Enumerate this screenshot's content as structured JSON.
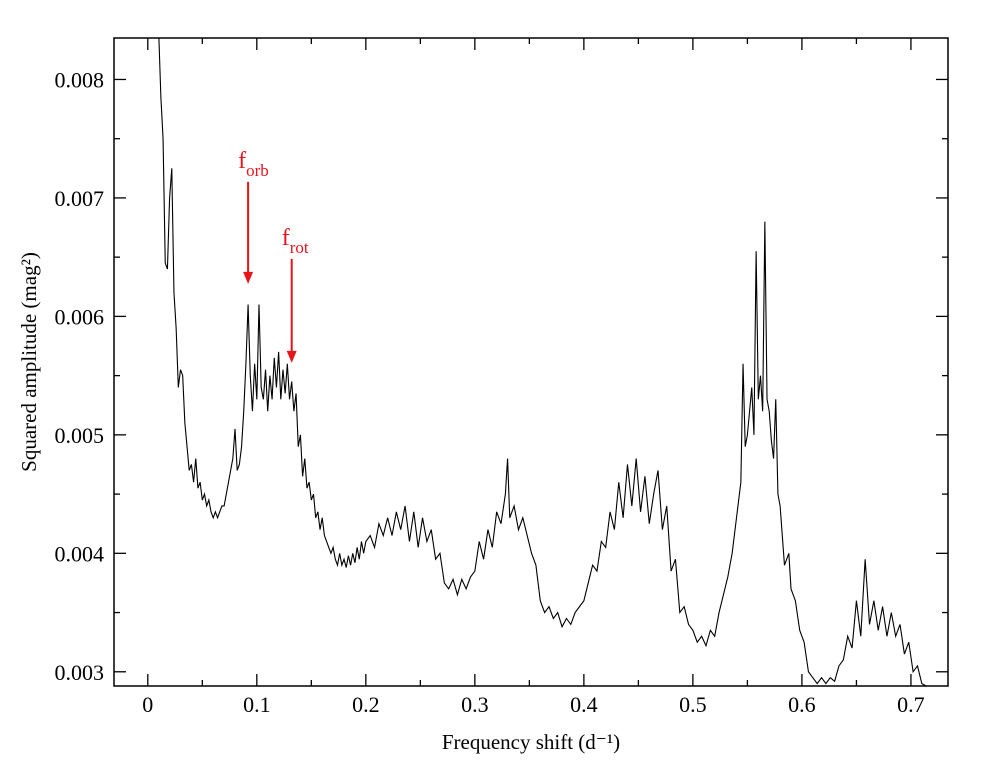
{
  "chart_data": {
    "type": "line",
    "xlabel": "Frequency shift (d⁻¹)",
    "ylabel": "Squared amplitude (mag²)",
    "xlim": [
      -0.031,
      0.734
    ],
    "ylim": [
      0.00288,
      0.00835
    ],
    "xticks": [
      0,
      0.1,
      0.2,
      0.3,
      0.4,
      0.5,
      0.6,
      0.7
    ],
    "yticks": [
      0.003,
      0.004,
      0.005,
      0.006,
      0.007,
      0.008
    ],
    "xticks_minor": [
      0.05,
      0.15,
      0.25,
      0.35,
      0.45,
      0.55,
      0.65
    ],
    "yticks_minor": [
      0.0035,
      0.0045,
      0.0055,
      0.0065,
      0.0075
    ],
    "grid": false,
    "series": [
      {
        "color": "#000000",
        "x": [
          0.01,
          0.012,
          0.014,
          0.016,
          0.018,
          0.02,
          0.022,
          0.024,
          0.026,
          0.028,
          0.03,
          0.032,
          0.034,
          0.036,
          0.038,
          0.04,
          0.042,
          0.044,
          0.046,
          0.048,
          0.05,
          0.052,
          0.054,
          0.056,
          0.058,
          0.06,
          0.062,
          0.064,
          0.066,
          0.068,
          0.07,
          0.072,
          0.074,
          0.076,
          0.078,
          0.08,
          0.082,
          0.084,
          0.086,
          0.088,
          0.09,
          0.092,
          0.094,
          0.096,
          0.098,
          0.1,
          0.102,
          0.104,
          0.106,
          0.108,
          0.11,
          0.112,
          0.114,
          0.116,
          0.118,
          0.12,
          0.122,
          0.124,
          0.126,
          0.128,
          0.13,
          0.132,
          0.134,
          0.136,
          0.138,
          0.14,
          0.142,
          0.144,
          0.146,
          0.148,
          0.15,
          0.152,
          0.154,
          0.156,
          0.158,
          0.16,
          0.162,
          0.164,
          0.166,
          0.168,
          0.17,
          0.172,
          0.174,
          0.176,
          0.178,
          0.18,
          0.182,
          0.184,
          0.186,
          0.188,
          0.19,
          0.192,
          0.194,
          0.196,
          0.198,
          0.2,
          0.204,
          0.208,
          0.212,
          0.216,
          0.22,
          0.224,
          0.228,
          0.232,
          0.236,
          0.24,
          0.244,
          0.248,
          0.252,
          0.256,
          0.26,
          0.264,
          0.268,
          0.272,
          0.276,
          0.28,
          0.284,
          0.288,
          0.292,
          0.296,
          0.3,
          0.304,
          0.308,
          0.312,
          0.316,
          0.32,
          0.324,
          0.328,
          0.33,
          0.332,
          0.336,
          0.34,
          0.344,
          0.348,
          0.352,
          0.356,
          0.36,
          0.364,
          0.368,
          0.372,
          0.376,
          0.38,
          0.384,
          0.388,
          0.392,
          0.396,
          0.4,
          0.404,
          0.408,
          0.412,
          0.416,
          0.42,
          0.424,
          0.428,
          0.432,
          0.436,
          0.44,
          0.444,
          0.448,
          0.452,
          0.456,
          0.46,
          0.464,
          0.468,
          0.472,
          0.476,
          0.48,
          0.484,
          0.488,
          0.492,
          0.496,
          0.5,
          0.504,
          0.508,
          0.512,
          0.516,
          0.52,
          0.524,
          0.528,
          0.532,
          0.536,
          0.54,
          0.544,
          0.546,
          0.548,
          0.55,
          0.552,
          0.554,
          0.556,
          0.558,
          0.56,
          0.562,
          0.564,
          0.566,
          0.568,
          0.57,
          0.572,
          0.574,
          0.576,
          0.578,
          0.58,
          0.584,
          0.588,
          0.59,
          0.594,
          0.598,
          0.602,
          0.606,
          0.61,
          0.614,
          0.618,
          0.622,
          0.626,
          0.63,
          0.634,
          0.638,
          0.642,
          0.646,
          0.65,
          0.654,
          0.658,
          0.662,
          0.666,
          0.67,
          0.674,
          0.678,
          0.682,
          0.686,
          0.69,
          0.694,
          0.698,
          0.702,
          0.706,
          0.71,
          0.714
        ],
        "values": [
          0.0084,
          0.00785,
          0.0075,
          0.00645,
          0.0064,
          0.007,
          0.00725,
          0.0062,
          0.0059,
          0.0054,
          0.00555,
          0.0055,
          0.0051,
          0.0049,
          0.0047,
          0.00475,
          0.0046,
          0.0048,
          0.00455,
          0.0046,
          0.00445,
          0.0045,
          0.0044,
          0.00445,
          0.00435,
          0.0043,
          0.00435,
          0.0043,
          0.00435,
          0.0044,
          0.0044,
          0.0045,
          0.0046,
          0.0047,
          0.0048,
          0.00505,
          0.0047,
          0.00475,
          0.0049,
          0.0052,
          0.0056,
          0.0061,
          0.0055,
          0.0052,
          0.0056,
          0.0053,
          0.0061,
          0.0054,
          0.0053,
          0.00555,
          0.0052,
          0.0055,
          0.0053,
          0.00565,
          0.0054,
          0.0057,
          0.0053,
          0.00555,
          0.00535,
          0.0056,
          0.0053,
          0.00545,
          0.0052,
          0.00535,
          0.0049,
          0.005,
          0.00465,
          0.0048,
          0.00455,
          0.0046,
          0.00445,
          0.0045,
          0.0043,
          0.00435,
          0.0042,
          0.0043,
          0.00415,
          0.0041,
          0.00405,
          0.004,
          0.00405,
          0.00395,
          0.0039,
          0.004,
          0.0039,
          0.00395,
          0.00388,
          0.00398,
          0.0039,
          0.004,
          0.00392,
          0.00405,
          0.00395,
          0.0041,
          0.004,
          0.0041,
          0.00415,
          0.00405,
          0.00425,
          0.00415,
          0.0043,
          0.00415,
          0.00435,
          0.0042,
          0.0044,
          0.0041,
          0.00435,
          0.00405,
          0.0043,
          0.0041,
          0.0042,
          0.00395,
          0.004,
          0.00375,
          0.0037,
          0.00378,
          0.00365,
          0.00378,
          0.0037,
          0.0038,
          0.00385,
          0.0041,
          0.00395,
          0.0042,
          0.00405,
          0.00435,
          0.00425,
          0.0045,
          0.0048,
          0.0043,
          0.0044,
          0.0042,
          0.0043,
          0.00415,
          0.004,
          0.0039,
          0.0036,
          0.0035,
          0.00355,
          0.00345,
          0.0035,
          0.00338,
          0.00345,
          0.0034,
          0.0035,
          0.00355,
          0.0036,
          0.00375,
          0.0039,
          0.00385,
          0.0041,
          0.00405,
          0.00435,
          0.0042,
          0.0046,
          0.0043,
          0.00475,
          0.0044,
          0.0048,
          0.00435,
          0.00465,
          0.00425,
          0.0045,
          0.0047,
          0.0042,
          0.0044,
          0.00385,
          0.00395,
          0.0035,
          0.00355,
          0.0034,
          0.00335,
          0.00325,
          0.0033,
          0.00322,
          0.00335,
          0.0033,
          0.0035,
          0.00365,
          0.0038,
          0.004,
          0.0043,
          0.0046,
          0.0056,
          0.0049,
          0.005,
          0.0052,
          0.0054,
          0.005,
          0.00655,
          0.0053,
          0.0055,
          0.0052,
          0.0068,
          0.0053,
          0.0052,
          0.00495,
          0.0048,
          0.0053,
          0.0045,
          0.0044,
          0.0039,
          0.004,
          0.0037,
          0.0036,
          0.00335,
          0.00325,
          0.003,
          0.00295,
          0.0029,
          0.00295,
          0.0029,
          0.00295,
          0.00292,
          0.00305,
          0.0031,
          0.0033,
          0.0032,
          0.0036,
          0.0033,
          0.00395,
          0.0034,
          0.0036,
          0.00335,
          0.00355,
          0.0033,
          0.0035,
          0.0033,
          0.0034,
          0.00315,
          0.00325,
          0.003,
          0.00305,
          0.0029,
          0.00288
        ]
      }
    ],
    "annotations": [
      {
        "text": "f",
        "sub": "orb",
        "color": "#e8141b",
        "x": 0.092,
        "y": 0.006274,
        "tail_y": 0.007135
      },
      {
        "text": "f",
        "sub": "rot",
        "color": "#e8141b",
        "x": 0.132,
        "y": 0.005608,
        "tail_y": 0.006485
      }
    ]
  }
}
